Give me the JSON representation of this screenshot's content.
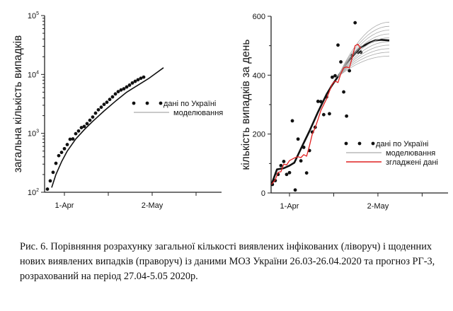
{
  "chart_data": [
    {
      "type": "scatter",
      "yscale": "log",
      "ylabel": "загальна кількість випадків",
      "xlabel": "",
      "xticks": [
        {
          "day": 0,
          "label": "1-Apr"
        },
        {
          "day": 31,
          "label": "2-May"
        }
      ],
      "x_minor_ticks": [
        15.5,
        46.5
      ],
      "xlim": [
        -7,
        55
      ],
      "ylim": [
        100,
        100000
      ],
      "yticks": [
        {
          "value": 100,
          "base": "10",
          "exp": "2"
        },
        {
          "value": 1000,
          "base": "10",
          "exp": "3"
        },
        {
          "value": 10000,
          "base": "10",
          "exp": "4"
        },
        {
          "value": 100000,
          "base": "10",
          "exp": "5"
        }
      ],
      "legend": {
        "position": "right-middle",
        "items": [
          "дані по Україні",
          "моделювання"
        ]
      },
      "series": [
        {
          "name": "дані по Україні",
          "style": "dots",
          "x": [
            -6,
            -5,
            -4,
            -3,
            -2,
            -1,
            0,
            1,
            2,
            3,
            4,
            5,
            6,
            7,
            8,
            9,
            10,
            11,
            12,
            13,
            14,
            15,
            16,
            17,
            18,
            19,
            20,
            21,
            22,
            23,
            24,
            25,
            26,
            27,
            28
          ],
          "y": [
            113,
            156,
            218,
            310,
            418,
            475,
            549,
            645,
            794,
            804,
            987,
            1096,
            1251,
            1308,
            1462,
            1668,
            1892,
            2203,
            2511,
            2777,
            3102,
            3372,
            3764,
            4161,
            4662,
            5106,
            5449,
            5710,
            6125,
            6592,
            7170,
            7647,
            8125,
            8617,
            9009
          ]
        },
        {
          "name": "моделювання",
          "style": "line",
          "x": [
            -4.5,
            -3,
            -1,
            1,
            4,
            7,
            10,
            14,
            18,
            22,
            26,
            30,
            35
          ],
          "y": [
            120,
            200,
            330,
            500,
            800,
            1150,
            1600,
            2400,
            3500,
            5000,
            6600,
            8700,
            13000
          ]
        }
      ]
    },
    {
      "type": "scatter",
      "ylabel": "кількість випадків за день",
      "xlabel": "",
      "xticks": [
        {
          "day": 0,
          "label": "1-Apr"
        },
        {
          "day": 31,
          "label": "2-May"
        }
      ],
      "x_minor_ticks": [
        15.5,
        46.5
      ],
      "xlim": [
        -6.4,
        55
      ],
      "ylim": [
        0,
        600
      ],
      "yticks": [
        0,
        200,
        400,
        600
      ],
      "legend": {
        "position": "lower-right",
        "items": [
          "дані по Україні",
          "моделювання",
          "згладжені дані"
        ]
      },
      "series": [
        {
          "name": "дані по Україні",
          "style": "dots",
          "x": [
            -6,
            -5,
            -4,
            -3,
            -2,
            -1,
            0,
            1,
            2,
            3,
            4,
            5,
            6,
            7,
            8,
            9,
            10,
            11,
            12,
            13,
            14,
            15,
            16,
            17,
            18,
            19,
            20,
            21,
            22,
            23,
            24,
            25
          ],
          "y": [
            29,
            42,
            63,
            93,
            107,
            63,
            69,
            245,
            10,
            183,
            109,
            155,
            68,
            144,
            207,
            223,
            311,
            310,
            266,
            326,
            269,
            393,
            398,
            502,
            445,
            343,
            261,
            415,
            467,
            578,
            478,
            478
          ]
        },
        {
          "name": "моделювання",
          "style": "thick-line",
          "x": [
            -6.3,
            -4.4,
            -2,
            0,
            1.7,
            4,
            7,
            10,
            13,
            15,
            17,
            20,
            23,
            25,
            28,
            30,
            32,
            35
          ],
          "y": [
            29,
            80,
            84,
            93,
            103,
            150,
            210,
            275,
            335,
            367,
            395,
            440,
            475,
            495,
            510,
            518,
            520,
            518
          ]
        },
        {
          "name": "моделювання (ансамбль)",
          "style": "thin-gray-fan",
          "start_day": 17,
          "start_value": 395,
          "end_day": 35,
          "end_values": [
            465,
            478,
            490,
            502,
            514,
            527,
            540,
            553,
            566,
            580
          ]
        },
        {
          "name": "згладжені дані",
          "style": "red-line",
          "color": "#e02020",
          "x": [
            -6.3,
            -5,
            -4,
            -3,
            -2,
            -1,
            0,
            1,
            2,
            3,
            4,
            5,
            6,
            7,
            8,
            9,
            10,
            11,
            12,
            13,
            14,
            15,
            16,
            17,
            18,
            19,
            20,
            21,
            22,
            23,
            24,
            25
          ],
          "y": [
            29,
            45,
            70,
            72,
            98,
            95,
            110,
            115,
            120,
            123,
            120,
            130,
            125,
            160,
            200,
            222,
            250,
            280,
            300,
            320,
            345,
            370,
            380,
            375,
            405,
            425,
            428,
            425,
            460,
            500,
            505,
            490
          ]
        }
      ]
    }
  ],
  "caption": {
    "lines": [
      "Рис. 6. Порівняння розрахунку загальної кількості виявлених інфікованих (ліворуч) і щоденних",
      "нових виявлених випадків (праворуч) із даними МОЗ України 26.03-26.04.2020 та прогноз РГ-3,",
      "розрахований на період 27.04-5.05 2020р."
    ]
  }
}
